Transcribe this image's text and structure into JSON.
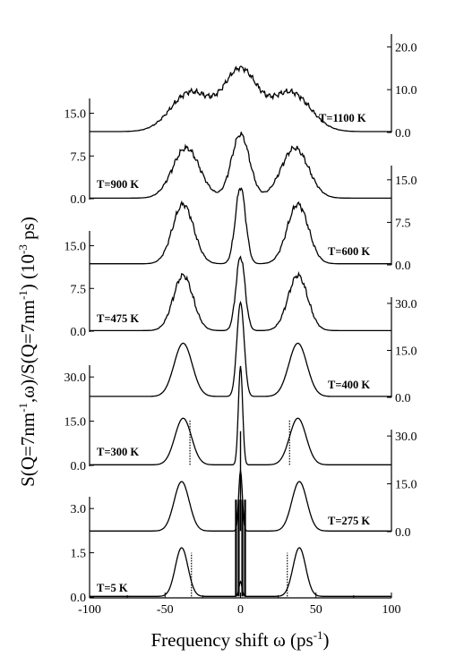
{
  "chart_data": {
    "type": "line",
    "title": "",
    "xlabel": "Frequency shift ω (ps⁻¹)",
    "xlabel_parts": {
      "main": "Frequency shift ω (ps",
      "sup": "-1",
      "close": ")"
    },
    "ylabel": "S(Q=7nm⁻¹,ω)/S(Q=7nm⁻¹) (10⁻³ ps)",
    "ylabel_parts": {
      "a": "S(Q=7nm",
      "sup1": "-1",
      "b": ",ω)/S(Q=7nm",
      "sup2": "-1",
      "c": ")   (10",
      "sup3": "-3",
      "d": " ps)"
    },
    "xlim": [
      -100,
      100
    ],
    "x_ticks": [
      "-100",
      "-50",
      "0",
      "50",
      "100"
    ],
    "grid": false,
    "left_axes": [
      {
        "ticks": [
          "0.0",
          "1.5",
          "3.0"
        ],
        "ylim": [
          0,
          3.4
        ]
      },
      {
        "ticks": [
          "0.0",
          "15.0",
          "30.0"
        ],
        "ylim": [
          0,
          34
        ]
      },
      {
        "ticks": [
          "0.0",
          "7.5",
          "15.0"
        ],
        "ylim": [
          0,
          17.6
        ]
      },
      {
        "ticks": [
          "0.0",
          "7.5",
          "15.0"
        ],
        "ylim": [
          0,
          17.6
        ]
      }
    ],
    "right_axes": [
      {
        "ticks": [
          "0.0",
          "15.0",
          "30.0"
        ],
        "ylim": [
          0,
          32
        ]
      },
      {
        "ticks": [
          "0.0",
          "15.0",
          "30.0"
        ],
        "ylim": [
          0,
          32
        ]
      },
      {
        "ticks": [
          "0.0",
          "7.5",
          "15.0"
        ],
        "ylim": [
          0,
          17.5
        ]
      },
      {
        "ticks": [
          "0.0",
          "10.0",
          "20.0"
        ],
        "ylim": [
          0,
          23
        ]
      }
    ],
    "series": [
      {
        "name": "T=5 K",
        "side": "left",
        "axis": 0,
        "baseline": 0.02,
        "peaks": [
          {
            "x": -39,
            "h": 1.65,
            "w": 4.2
          },
          {
            "x": 39,
            "h": 1.65,
            "w": 4.2
          },
          {
            "x": 0,
            "h": 0.5,
            "w": 1.0
          }
        ],
        "dotted": {
          "x": [
            -32.5,
            31
          ],
          "h": 1.5
        },
        "spikes": {
          "x": [
            -3,
            -1.2,
            1.2,
            3
          ],
          "h": 3.3
        }
      },
      {
        "name": "T=275 K",
        "side": "right",
        "axis": 0,
        "baseline": 0.2,
        "peaks": [
          {
            "x": -39,
            "h": 15.5,
            "w": 5
          },
          {
            "x": 39,
            "h": 15.5,
            "w": 5
          },
          {
            "x": 0,
            "h": 19,
            "w": 1.2
          }
        ],
        "spike": {
          "x": 0,
          "h": 31.5
        }
      },
      {
        "name": "T=300 K",
        "side": "left",
        "axis": 1,
        "baseline": 0.2,
        "peaks": [
          {
            "x": -38,
            "h": 15.8,
            "w": 5.5
          },
          {
            "x": 38,
            "h": 15.8,
            "w": 5.5
          },
          {
            "x": 0,
            "h": 33.5,
            "w": 1.4
          }
        ],
        "dotted": {
          "x": [
            -33.5,
            32.5
          ],
          "h": 15.5
        }
      },
      {
        "name": "T=400 K",
        "side": "right",
        "axis": 1,
        "baseline": 0.3,
        "peaks": [
          {
            "x": -38,
            "h": 17.0,
            "w": 6
          },
          {
            "x": 38,
            "h": 17.0,
            "w": 6
          },
          {
            "x": 0,
            "h": 30.0,
            "w": 2.4
          }
        ]
      },
      {
        "name": "T=475 K",
        "side": "left",
        "axis": 2,
        "baseline": 0.1,
        "peaks": [
          {
            "x": -38,
            "h": 9.7,
            "w": 6.5
          },
          {
            "x": 38,
            "h": 9.7,
            "w": 6.5
          },
          {
            "x": 0,
            "h": 13.0,
            "w": 3.0
          }
        ]
      },
      {
        "name": "T=600 K",
        "side": "right",
        "axis": 2,
        "baseline": 0.2,
        "peaks": [
          {
            "x": -38,
            "h": 10.5,
            "w": 7
          },
          {
            "x": 38,
            "h": 10.5,
            "w": 7
          },
          {
            "x": 0,
            "h": 13.5,
            "w": 3.4
          }
        ]
      },
      {
        "name": "T=900 K",
        "side": "left",
        "axis": 3,
        "baseline": 0.1,
        "peaks": [
          {
            "x": -36,
            "h": 8.8,
            "w": 9
          },
          {
            "x": 36,
            "h": 8.8,
            "w": 9
          },
          {
            "x": 0,
            "h": 11.2,
            "w": 6
          }
        ]
      },
      {
        "name": "T=1100 K",
        "side": "right",
        "axis": 3,
        "baseline": 0.2,
        "peaks": [
          {
            "x": -33,
            "h": 9.2,
            "w": 13
          },
          {
            "x": 33,
            "h": 9.2,
            "w": 13
          },
          {
            "x": 0,
            "h": 14.2,
            "w": 11
          }
        ]
      }
    ]
  }
}
